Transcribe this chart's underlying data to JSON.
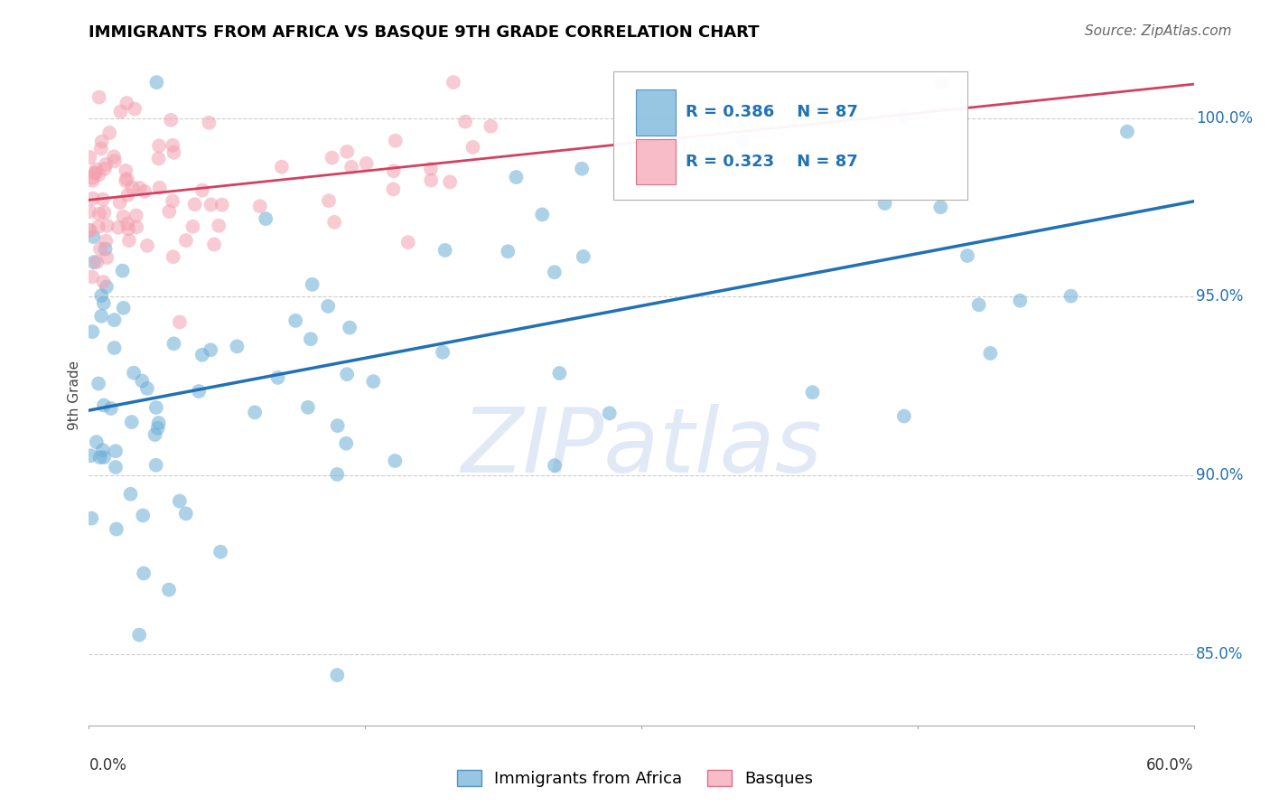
{
  "title": "IMMIGRANTS FROM AFRICA VS BASQUE 9TH GRADE CORRELATION CHART",
  "source": "Source: ZipAtlas.com",
  "ylabel": "9th Grade",
  "y_ticks": [
    85.0,
    90.0,
    95.0,
    100.0
  ],
  "y_tick_labels": [
    "85.0%",
    "90.0%",
    "95.0%",
    "100.0%"
  ],
  "xlim": [
    0.0,
    60.0
  ],
  "ylim": [
    83.0,
    101.5
  ],
  "legend_blue_label": "Immigrants from Africa",
  "legend_pink_label": "Basques",
  "R_blue": 0.386,
  "R_pink": 0.323,
  "N": 87,
  "blue_color": "#6baed6",
  "pink_color": "#f4a0b0",
  "blue_line_color": "#2171b5",
  "pink_line_color": "#d44060",
  "title_fontsize": 13,
  "source_fontsize": 11,
  "tick_label_fontsize": 12,
  "ylabel_fontsize": 11,
  "legend_fontsize": 13,
  "watermark_text": "ZIPatlas",
  "watermark_color": "#c8d8ee",
  "background_color": "#ffffff"
}
